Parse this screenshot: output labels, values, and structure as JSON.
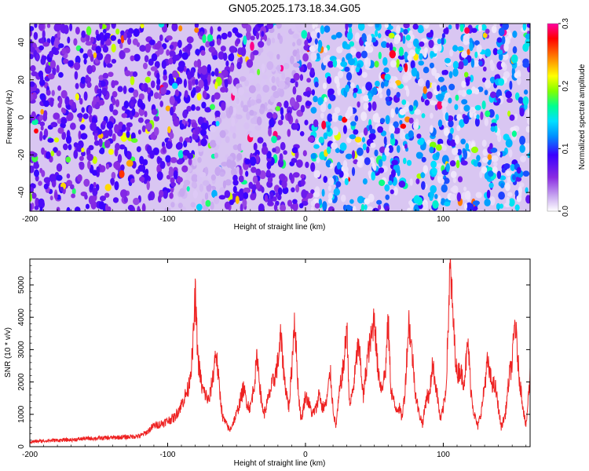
{
  "figure_title": "GN05.2025.173.18.34.G05",
  "chart_data": [
    {
      "type": "heatmap",
      "title": "GN05.2025.173.18.34.G05",
      "xlabel": "Height of straight line (km)",
      "ylabel": "Frequency (Hz)",
      "xlim": [
        -200,
        163
      ],
      "ylim": [
        -50,
        50
      ],
      "x_ticks": [
        -200,
        -100,
        0,
        100
      ],
      "x_tick_labels": [
        "-200",
        "-100",
        "0",
        "100"
      ],
      "y_ticks": [
        -40,
        -20,
        0,
        20,
        40
      ],
      "y_tick_labels": [
        "-40",
        "-20",
        "0",
        "20",
        "40"
      ],
      "colorbar": {
        "label": "Normalized spectral amplitude",
        "range": [
          0.0,
          0.3
        ],
        "ticks": [
          0.0,
          0.1,
          0.2,
          0.3
        ],
        "tick_labels": [
          "0.0",
          "0.1",
          "0.2",
          "0.3"
        ],
        "colormap": [
          "#ffffff",
          "#c8a8f0",
          "#8a2be2",
          "#3a00ff",
          "#0090ff",
          "#00e0ff",
          "#00ff90",
          "#80ff00",
          "#ffff00",
          "#ff8000",
          "#ff0000",
          "#ff00a0"
        ]
      },
      "description_features": {
        "left_region_x": [
          -200,
          -120
        ],
        "diagonal_stripes_start_x": 5,
        "stripe_period_km": 10,
        "faint_band_center": [
          -85,
          -5
        ]
      }
    },
    {
      "type": "line",
      "xlabel": "Height of straight line (km)",
      "ylabel": "SNR (10 * v/v)",
      "xlim": [
        -200,
        163
      ],
      "ylim": [
        0,
        5800
      ],
      "x_ticks": [
        -200,
        -100,
        0,
        100
      ],
      "x_tick_labels": [
        "-200",
        "-100",
        "0",
        "100"
      ],
      "y_ticks": [
        0,
        1000,
        2000,
        3000,
        4000,
        5000
      ],
      "y_tick_labels": [
        "0",
        "1000",
        "2000",
        "3000",
        "4000",
        "5000"
      ],
      "color": "#ee2222",
      "series": [
        {
          "x": [
            -200,
            -190,
            -180,
            -170,
            -160,
            -150,
            -140,
            -130,
            -120,
            -115,
            -110,
            -105,
            -100,
            -95,
            -90,
            -85,
            -82,
            -80,
            -78,
            -75,
            -70,
            -67,
            -65,
            -62,
            -60,
            -55,
            -52,
            -50,
            -45,
            -42,
            -40,
            -37,
            -35,
            -32,
            -30,
            -25,
            -22,
            -20,
            -18,
            -15,
            -12,
            -10,
            -8,
            -5,
            -3,
            0,
            2,
            5,
            8,
            10,
            12,
            15,
            18,
            20,
            22,
            25,
            28,
            30,
            32,
            35,
            38,
            40,
            42,
            45,
            48,
            50,
            52,
            55,
            58,
            60,
            62,
            65,
            68,
            70,
            72,
            75,
            78,
            80,
            82,
            85,
            88,
            90,
            92,
            95,
            98,
            100,
            102,
            105,
            108,
            110,
            112,
            115,
            118,
            120,
            122,
            125,
            128,
            130,
            132,
            135,
            138,
            140,
            142,
            145,
            148,
            150,
            152,
            155,
            158,
            160,
            163
          ],
          "y": [
            150,
            180,
            200,
            210,
            250,
            260,
            280,
            300,
            330,
            450,
            650,
            700,
            800,
            900,
            1300,
            1800,
            2800,
            4700,
            2700,
            1800,
            1400,
            2200,
            3000,
            1600,
            900,
            500,
            800,
            1000,
            1800,
            1300,
            1200,
            2000,
            2800,
            1400,
            1000,
            1800,
            2200,
            2600,
            3400,
            2000,
            1200,
            2400,
            4000,
            1600,
            800,
            1600,
            1400,
            1000,
            1200,
            1700,
            1200,
            1300,
            2300,
            1200,
            600,
            1800,
            2600,
            3800,
            1200,
            1900,
            3100,
            2600,
            1500,
            2800,
            3400,
            4100,
            2600,
            1800,
            2300,
            3900,
            1800,
            1200,
            1200,
            900,
            1600,
            3900,
            2600,
            1600,
            1100,
            700,
            1600,
            1500,
            2600,
            1800,
            800,
            1200,
            1800,
            5600,
            3300,
            2200,
            2400,
            2000,
            3200,
            1800,
            1100,
            600,
            1200,
            1900,
            2600,
            2000,
            1800,
            1200,
            600,
            1000,
            2200,
            2600,
            3900,
            2200,
            1200,
            600,
            2200
          ]
        }
      ]
    }
  ]
}
